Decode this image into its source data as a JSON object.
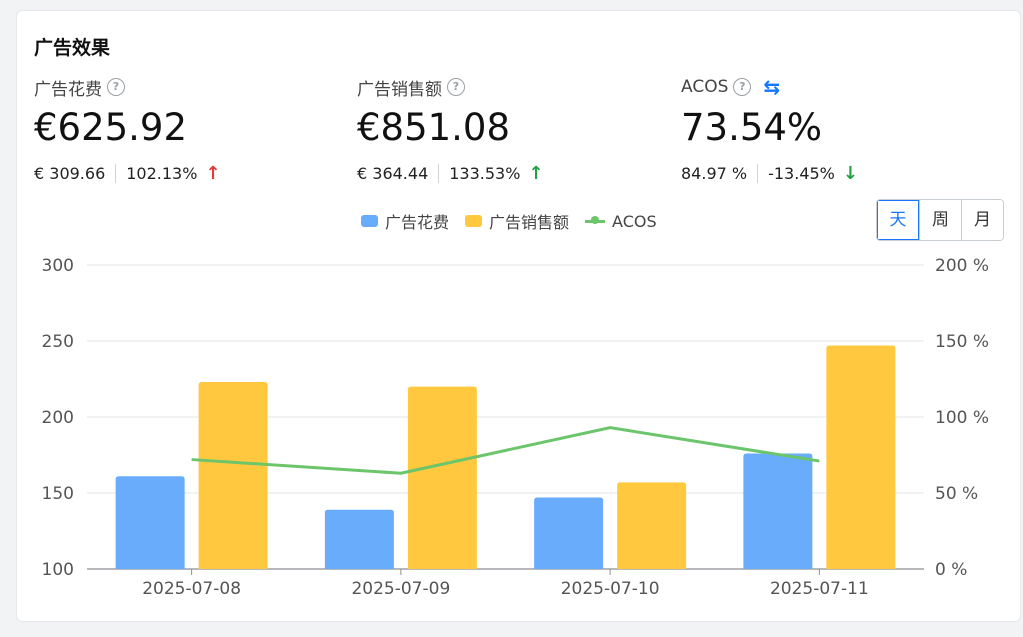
{
  "card": {
    "title": "广告效果"
  },
  "metrics": [
    {
      "label": "广告花费",
      "value": "€625.92",
      "prev": "€ 309.66",
      "change": "102.13%",
      "direction": "up",
      "arrow_color": "#e23b3b"
    },
    {
      "label": "广告销售额",
      "value": "€851.08",
      "prev": "€ 364.44",
      "change": "133.53%",
      "direction": "up",
      "arrow_color": "#22a046"
    },
    {
      "label": "ACOS",
      "value": "73.54%",
      "prev": "84.97 %",
      "change": "-13.45%",
      "direction": "down",
      "arrow_color": "#22a046"
    }
  ],
  "period_switch": {
    "options": [
      "天",
      "周",
      "月"
    ],
    "selected": "天"
  },
  "chart_data": {
    "type": "bar",
    "categories": [
      "2025-07-08",
      "2025-07-09",
      "2025-07-10",
      "2025-07-11"
    ],
    "series": [
      {
        "name": "广告花费",
        "type": "bar",
        "axis": "left",
        "color": "#69acfb",
        "values": [
          161,
          139,
          147,
          176
        ]
      },
      {
        "name": "广告销售额",
        "type": "bar",
        "axis": "left",
        "color": "#ffc83f",
        "values": [
          223,
          220,
          157,
          247
        ]
      },
      {
        "name": "ACOS",
        "type": "line",
        "axis": "right",
        "color": "#6cc56b",
        "values": [
          72,
          63,
          93,
          71
        ]
      }
    ],
    "y_left": {
      "min": 100,
      "max": 300,
      "ticks": [
        "100",
        "150",
        "200",
        "250",
        "300"
      ]
    },
    "y_right": {
      "min": 0,
      "max": 200,
      "ticks": [
        "0 %",
        "50 %",
        "100 %",
        "150 %",
        "200 %"
      ]
    },
    "grid": true,
    "legend_position": "top-center"
  }
}
